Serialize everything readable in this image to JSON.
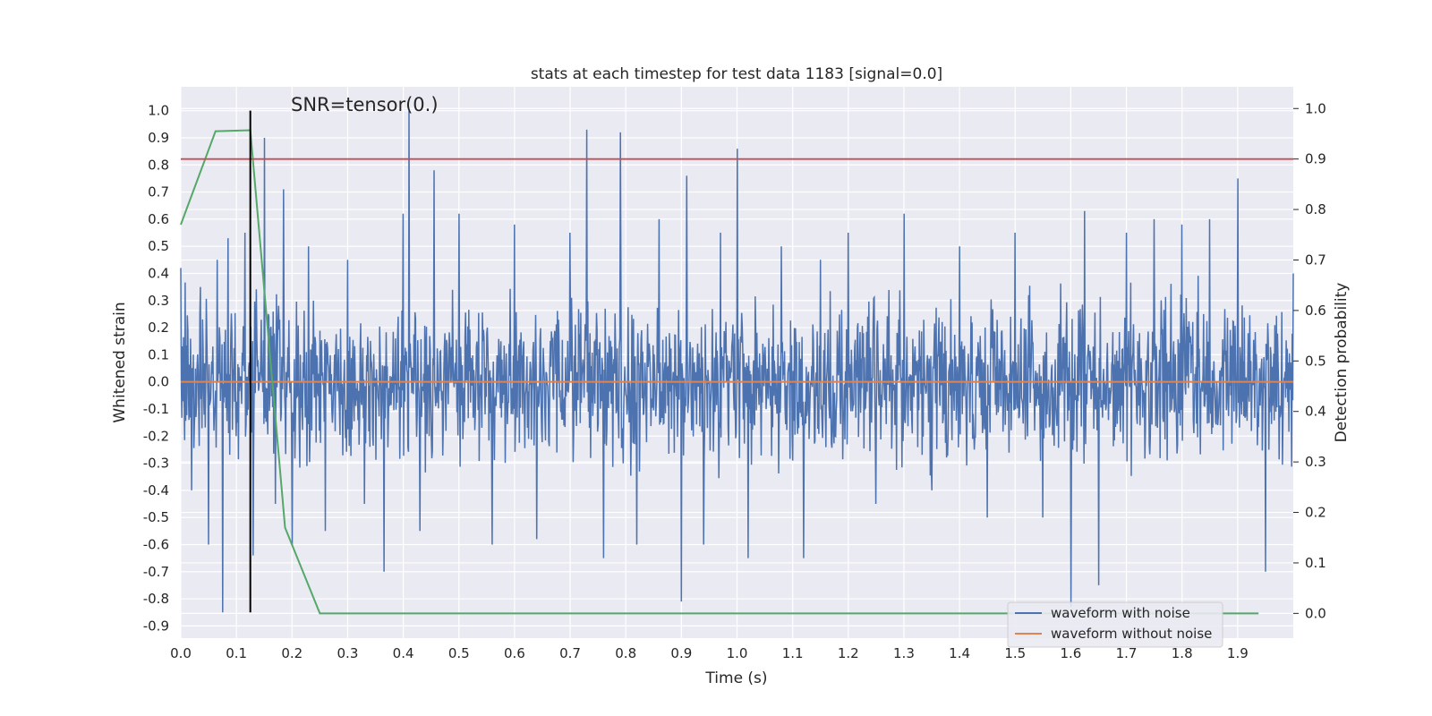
{
  "chart_data": {
    "type": "line",
    "title": "stats at each timestep for test data 1183 [signal=0.0]",
    "xlabel": "Time (s)",
    "ylabel_left": "Whitened strain",
    "ylabel_right": "Detection probability",
    "annotation": "SNR=tensor(0.)",
    "xlim": [
      0.0,
      2.0
    ],
    "ylim_left": [
      -0.945,
      1.088
    ],
    "ylim_right": [
      -0.049,
      1.043
    ],
    "x_ticks": [
      "0.0",
      "0.1",
      "0.2",
      "0.3",
      "0.4",
      "0.5",
      "0.6",
      "0.7",
      "0.8",
      "0.9",
      "1.0",
      "1.1",
      "1.2",
      "1.3",
      "1.4",
      "1.5",
      "1.6",
      "1.7",
      "1.8",
      "1.9"
    ],
    "y_ticks_left": [
      "1.0",
      "0.9",
      "0.8",
      "0.7",
      "0.6",
      "0.5",
      "0.4",
      "0.3",
      "0.2",
      "0.1",
      "0.0",
      "-0.1",
      "-0.2",
      "-0.3",
      "-0.4",
      "-0.5",
      "-0.6",
      "-0.7",
      "-0.8",
      "-0.9"
    ],
    "y_ticks_right": [
      "1.0",
      "0.9",
      "0.8",
      "0.7",
      "0.6",
      "0.5",
      "0.4",
      "0.3",
      "0.2",
      "0.1",
      "0.0"
    ],
    "grid": true,
    "legend_position": "lower-right",
    "series": [
      {
        "name": "waveform with noise",
        "color": "#4c72b0",
        "axis": "left",
        "description_points": {
          "x": [
            0.0,
            0.02,
            0.035,
            0.05,
            0.065,
            0.075,
            0.085,
            0.1,
            0.115,
            0.13,
            0.15,
            0.17,
            0.185,
            0.2,
            0.23,
            0.26,
            0.3,
            0.33,
            0.365,
            0.4,
            0.41,
            0.43,
            0.455,
            0.5,
            0.56,
            0.6,
            0.64,
            0.7,
            0.73,
            0.76,
            0.79,
            0.82,
            0.86,
            0.9,
            0.91,
            0.94,
            0.97,
            1.0,
            1.02,
            1.08,
            1.12,
            1.15,
            1.2,
            1.25,
            1.3,
            1.35,
            1.4,
            1.45,
            1.5,
            1.55,
            1.6,
            1.625,
            1.65,
            1.7,
            1.75,
            1.8,
            1.85,
            1.9,
            1.95,
            2.0
          ],
          "y": [
            0.42,
            -0.4,
            0.35,
            -0.6,
            0.45,
            -0.85,
            0.53,
            -0.2,
            0.55,
            -0.64,
            0.9,
            -0.45,
            0.71,
            -0.6,
            0.5,
            -0.55,
            0.45,
            -0.45,
            -0.7,
            0.62,
            1.0,
            -0.55,
            0.78,
            0.62,
            -0.6,
            0.58,
            -0.58,
            0.55,
            0.93,
            -0.65,
            0.92,
            -0.6,
            0.6,
            -0.81,
            0.76,
            -0.6,
            0.55,
            0.86,
            -0.65,
            0.5,
            -0.65,
            0.45,
            0.55,
            -0.45,
            0.62,
            -0.4,
            0.5,
            -0.5,
            0.55,
            -0.5,
            -0.83,
            0.63,
            -0.75,
            0.55,
            0.6,
            0.58,
            0.6,
            0.75,
            -0.7,
            0.4
          ]
        }
      },
      {
        "name": "waveform without noise",
        "color": "#dd8452",
        "axis": "left",
        "x": [
          0.0,
          2.0
        ],
        "y": [
          0.0,
          0.0
        ]
      },
      {
        "name": "",
        "color": "#55a868",
        "axis": "right",
        "x": [
          0.0,
          0.0625,
          0.125,
          0.1875,
          0.25,
          1.9375
        ],
        "y": [
          0.77,
          0.955,
          0.957,
          0.17,
          0.0,
          0.0
        ]
      }
    ],
    "hlines": [
      {
        "axis": "right",
        "y": 0.9,
        "color": "#c44e52"
      }
    ],
    "vlines": [
      {
        "x": 0.125,
        "y_from": -0.85,
        "y_to": 1.0,
        "color": "#000000"
      }
    ]
  }
}
